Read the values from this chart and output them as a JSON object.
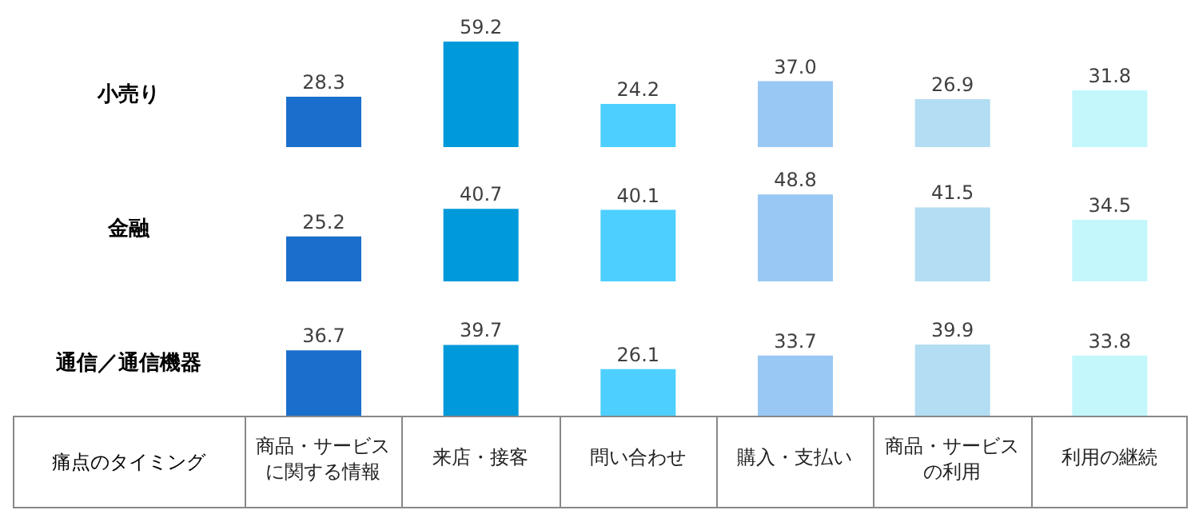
{
  "chart_data": [
    {
      "type": "bar",
      "title": "小売り",
      "categories": [
        null,
        null,
        null,
        null,
        null,
        null
      ],
      "values": [
        28.3,
        59.2,
        24.2,
        37.0,
        26.9,
        31.8
      ],
      "value_labels": [
        "28.3",
        "59.2",
        "24.2",
        "37.0",
        "26.9",
        "31.8"
      ],
      "colors": [
        "#1a6fcc",
        "#0099d9",
        "#4dcfff",
        "#99c8f5",
        "#b3ddf2",
        "#c4f7fc"
      ],
      "tick_labels": false
    },
    {
      "type": "bar",
      "title": "金融",
      "categories": [
        null,
        null,
        null,
        null,
        null,
        null
      ],
      "values": [
        25.2,
        40.7,
        40.1,
        48.8,
        41.5,
        34.5
      ],
      "colors": [
        "#1a6fcc",
        "#0099d9",
        "#4dcfff",
        "#99c8f5",
        "#b3ddf2",
        "#c4f7fc"
      ],
      "data_labels": true,
      "tick_labels": false
    },
    {
      "type": "bar",
      "title": "通信／通信機器",
      "xlabel": "痛点のタイミング",
      "categories": [
        "商品・サービスに関する情報",
        "来店・接客",
        "問い合わせ",
        "購入・支払い",
        "商品・サービスの利用",
        "利用の継続"
      ],
      "values": [
        36.7,
        39.7,
        26.1,
        33.7,
        39.9,
        33.8
      ],
      "colors": [
        "#1a6fcc",
        "#0099d9",
        "#4dcfff",
        "#99c8f5",
        "#b3ddf2",
        "#c4f7fc"
      ],
      "data_labels": true,
      "tick_labels": "x"
    }
  ]
}
